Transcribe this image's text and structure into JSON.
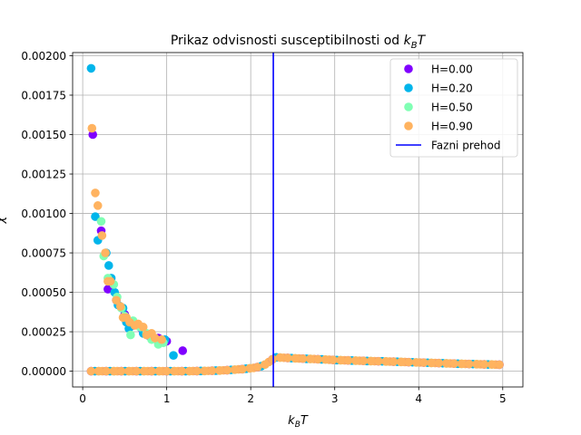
{
  "chart_data": {
    "type": "scatter",
    "title": "Prikaz odvisnosti susceptibilnosti od k_BT",
    "title_text": "Prikaz odvisnosti susceptibilnosti od ",
    "title_math": {
      "base": "k",
      "sub": "B",
      "tail": "T"
    },
    "xlabel_math": {
      "base": "k",
      "sub": "B",
      "tail": "T"
    },
    "ylabel": "χ",
    "xlim": [
      -0.12,
      5.24
    ],
    "ylim": [
      -0.0001,
      0.00202
    ],
    "xticks": [
      0,
      1,
      2,
      3,
      4,
      5
    ],
    "xtick_labels": [
      "0",
      "1",
      "2",
      "3",
      "4",
      "5"
    ],
    "yticks": [
      0,
      0.00025,
      0.0005,
      0.00075,
      0.001,
      0.00125,
      0.0015,
      0.00175,
      0.002
    ],
    "ytick_labels": [
      "0.00000",
      "0.00025",
      "0.00050",
      "0.00075",
      "0.00100",
      "0.00125",
      "0.00150",
      "0.00175",
      "0.00200"
    ],
    "grid": true,
    "legend_position": "top-right",
    "phase_transition": {
      "name": "Fazni prehod",
      "x": 2.269,
      "color": "#0000ff"
    },
    "series": [
      {
        "name": "H=0.00",
        "color": "#8000ff",
        "points": [
          [
            0.12,
            0.0015
          ],
          [
            0.22,
            0.00089
          ],
          [
            0.3,
            0.00052
          ],
          [
            0.4,
            0.00045
          ],
          [
            0.5,
            0.00036
          ],
          [
            0.6,
            0.00029
          ],
          [
            0.7,
            0.00027
          ],
          [
            0.8,
            0.00022
          ],
          [
            0.9,
            0.00021
          ],
          [
            1.0,
            0.00019
          ],
          [
            1.19,
            0.00013
          ]
        ]
      },
      {
        "name": "H=0.20",
        "color": "#00b5eb",
        "points": [
          [
            0.1,
            0.00192
          ],
          [
            0.15,
            0.00098
          ],
          [
            0.18,
            0.00083
          ],
          [
            0.28,
            0.00075
          ],
          [
            0.31,
            0.00067
          ],
          [
            0.34,
            0.00059
          ],
          [
            0.38,
            0.0005
          ],
          [
            0.42,
            0.00042
          ],
          [
            0.48,
            0.0004
          ],
          [
            0.52,
            0.00031
          ],
          [
            0.55,
            0.00027
          ],
          [
            0.63,
            0.0003
          ],
          [
            0.72,
            0.00024
          ],
          [
            0.8,
            0.00023
          ],
          [
            0.88,
            0.0002
          ],
          [
            0.98,
            0.0002
          ],
          [
            1.08,
            0.0001
          ]
        ]
      },
      {
        "name": "H=0.50",
        "color": "#80ffb4",
        "points": [
          [
            0.22,
            0.00095
          ],
          [
            0.25,
            0.00073
          ],
          [
            0.3,
            0.00059
          ],
          [
            0.37,
            0.00055
          ],
          [
            0.41,
            0.00047
          ],
          [
            0.46,
            0.0004
          ],
          [
            0.5,
            0.00035
          ],
          [
            0.57,
            0.00023
          ],
          [
            0.6,
            0.00032
          ],
          [
            0.68,
            0.00028
          ],
          [
            0.76,
            0.00024
          ],
          [
            0.82,
            0.0002
          ],
          [
            0.9,
            0.00017
          ],
          [
            0.96,
            0.00018
          ]
        ]
      },
      {
        "name": "H=0.90",
        "color": "#ffb360",
        "points": [
          [
            0.11,
            0.00154
          ],
          [
            0.15,
            0.00113
          ],
          [
            0.18,
            0.00105
          ],
          [
            0.23,
            0.00086
          ],
          [
            0.27,
            0.00075
          ],
          [
            0.3,
            0.00057
          ],
          [
            0.33,
            0.00057
          ],
          [
            0.4,
            0.00045
          ],
          [
            0.45,
            0.00041
          ],
          [
            0.48,
            0.00034
          ],
          [
            0.52,
            0.00034
          ],
          [
            0.56,
            0.00031
          ],
          [
            0.62,
            0.00029
          ],
          [
            0.66,
            0.0003
          ],
          [
            0.72,
            0.00028
          ],
          [
            0.76,
            0.00023
          ],
          [
            0.82,
            0.00024
          ],
          [
            0.86,
            0.00021
          ],
          [
            0.94,
            0.0002
          ]
        ]
      }
    ],
    "baseline_curve": [
      [
        0.1,
        0.0
      ],
      [
        1.2,
        0.0
      ],
      [
        1.5,
        2e-06
      ],
      [
        1.7,
        6e-06
      ],
      [
        1.9,
        1.3e-05
      ],
      [
        2.05,
        2.2e-05
      ],
      [
        2.15,
        3.5e-05
      ],
      [
        2.22,
        6e-05
      ],
      [
        2.27,
        8e-05
      ],
      [
        2.3,
        8.8e-05
      ],
      [
        2.4,
        8.5e-05
      ],
      [
        2.6,
        8e-05
      ],
      [
        2.8,
        7.6e-05
      ],
      [
        3.0,
        7.1e-05
      ],
      [
        3.3,
        6.6e-05
      ],
      [
        3.6,
        6.2e-05
      ],
      [
        3.9,
        5.7e-05
      ],
      [
        4.2,
        5.2e-05
      ],
      [
        4.5,
        4.7e-05
      ],
      [
        4.8,
        4.3e-05
      ],
      [
        5.0,
        4.1e-05
      ]
    ]
  }
}
